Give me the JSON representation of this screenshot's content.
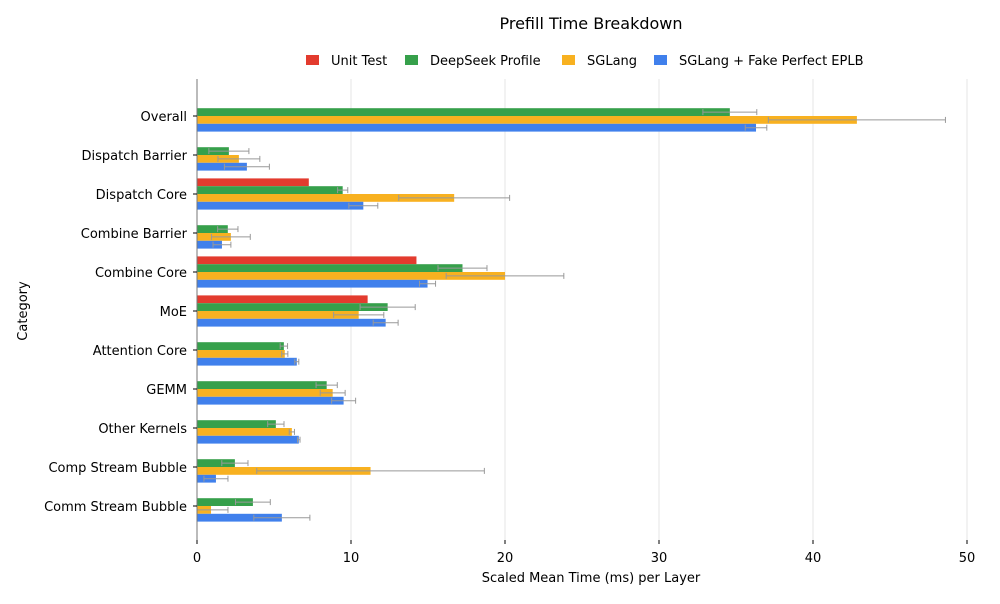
{
  "chart_data": {
    "type": "bar",
    "orientation": "horizontal",
    "title": "Prefill Time Breakdown",
    "xlabel": "Scaled Mean Time (ms) per Layer",
    "ylabel": "Category",
    "xlim": [
      0,
      50
    ],
    "xticks": [
      0,
      10,
      20,
      30,
      40,
      50
    ],
    "grid": "x",
    "legend_position": "top",
    "categories": [
      "Overall",
      "Dispatch Barrier",
      "Dispatch Core",
      "Combine Barrier",
      "Combine Core",
      "MoE",
      "Attention Core",
      "GEMM",
      "Other Kernels",
      "Comp Stream Bubble",
      "Comm Stream Bubble"
    ],
    "series": [
      {
        "name": "Unit Test",
        "color": "#e33b2e",
        "values": [
          null,
          null,
          7.26,
          null,
          14.25,
          11.08,
          null,
          null,
          null,
          null,
          null
        ],
        "errors": [
          null,
          null,
          null,
          null,
          null,
          null,
          null,
          null,
          null,
          null,
          null
        ]
      },
      {
        "name": "DeepSeek Profile",
        "color": "#36a04b",
        "values": [
          34.6,
          2.07,
          9.46,
          2.0,
          17.24,
          12.38,
          5.64,
          8.42,
          5.12,
          2.46,
          3.63
        ],
        "errors": [
          1.75,
          1.3,
          0.33,
          0.66,
          1.59,
          1.79,
          0.24,
          0.69,
          0.53,
          0.85,
          1.13
        ]
      },
      {
        "name": "SGLang",
        "color": "#f8b120",
        "values": [
          42.85,
          2.72,
          16.7,
          2.2,
          20.0,
          10.5,
          5.7,
          8.81,
          6.16,
          11.27,
          0.91
        ],
        "errors": [
          5.75,
          1.36,
          3.6,
          1.26,
          3.82,
          1.63,
          0.2,
          0.81,
          0.17,
          7.39,
          1.1
        ]
      },
      {
        "name": "SGLang + Fake Perfect EPLB",
        "color": "#4080ec",
        "values": [
          36.3,
          3.24,
          10.8,
          1.62,
          14.97,
          12.25,
          6.48,
          9.52,
          6.61,
          1.23,
          5.51
        ],
        "errors": [
          0.7,
          1.46,
          0.94,
          0.58,
          0.52,
          0.81,
          0.13,
          0.78,
          0.08,
          0.78,
          1.82
        ]
      }
    ]
  }
}
